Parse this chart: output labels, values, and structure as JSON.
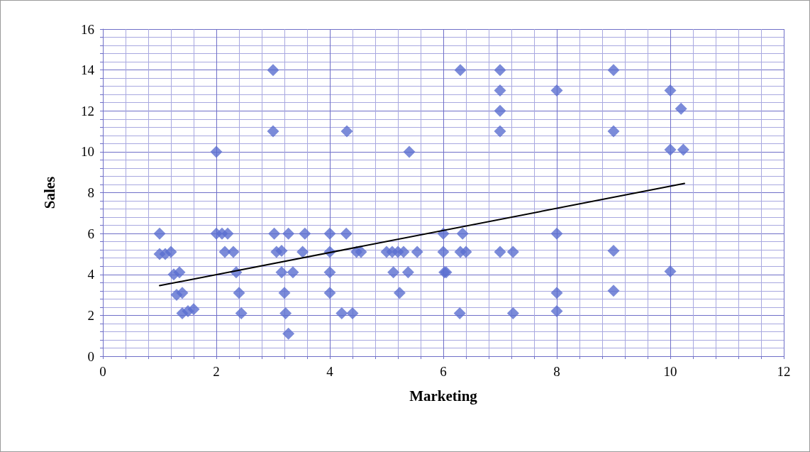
{
  "chart_data": {
    "type": "scatter",
    "xlabel": "Marketing",
    "ylabel": "Sales",
    "xlim": [
      0,
      12
    ],
    "xticks": [
      0,
      {
        "value": 0.4,
        "label": null
      },
      {
        "value": 0.8,
        "label": null
      },
      {
        "value": 1.2,
        "label": null
      },
      {
        "value": 1.6,
        "label": null
      },
      2,
      {
        "value": 2.4,
        "label": null
      },
      {
        "value": 2.8,
        "label": null
      },
      {
        "value": 3.2,
        "label": null
      },
      {
        "value": 3.6,
        "label": null
      },
      4,
      {
        "value": 4.4,
        "label": null
      },
      {
        "value": 4.8,
        "label": null
      },
      {
        "value": 5.2,
        "label": null
      },
      {
        "value": 5.6,
        "label": null
      },
      6,
      {
        "value": 6.4,
        "label": null
      },
      {
        "value": 6.8,
        "label": null
      },
      {
        "value": 7.2,
        "label": null
      },
      {
        "value": 7.6,
        "label": null
      },
      8,
      {
        "value": 8.4,
        "label": null
      },
      {
        "value": 8.8,
        "label": null
      },
      {
        "value": 9.2,
        "label": null
      },
      {
        "value": 9.6,
        "label": null
      },
      10,
      {
        "value": 10.4,
        "label": null
      },
      {
        "value": 10.8,
        "label": null
      },
      {
        "value": 11.2,
        "label": null
      },
      {
        "value": 11.6,
        "label": null
      },
      12
    ],
    "ylim": [
      0,
      16
    ],
    "yticks": [
      0,
      {
        "value": 0.4,
        "label": null
      },
      {
        "value": 0.8,
        "label": null
      },
      {
        "value": 1.2,
        "label": null
      },
      {
        "value": 1.6,
        "label": null
      },
      2,
      {
        "value": 2.4,
        "label": null
      },
      {
        "value": 2.8,
        "label": null
      },
      {
        "value": 3.2,
        "label": null
      },
      {
        "value": 3.6,
        "label": null
      },
      4,
      {
        "value": 4.4,
        "label": null
      },
      {
        "value": 4.8,
        "label": null
      },
      {
        "value": 5.2,
        "label": null
      },
      {
        "value": 5.6,
        "label": null
      },
      6,
      {
        "value": 6.4,
        "label": null
      },
      {
        "value": 6.8,
        "label": null
      },
      {
        "value": 7.2,
        "label": null
      },
      {
        "value": 7.6,
        "label": null
      },
      8,
      {
        "value": 8.4,
        "label": null
      },
      {
        "value": 8.8,
        "label": null
      },
      {
        "value": 9.2,
        "label": null
      },
      {
        "value": 9.6,
        "label": null
      },
      10,
      {
        "value": 10.4,
        "label": null
      },
      {
        "value": 10.8,
        "label": null
      },
      {
        "value": 11.2,
        "label": null
      },
      {
        "value": 11.6,
        "label": null
      },
      12,
      {
        "value": 12.4,
        "label": null
      },
      {
        "value": 12.8,
        "label": null
      },
      {
        "value": 13.2,
        "label": null
      },
      {
        "value": 13.6,
        "label": null
      },
      14,
      {
        "value": 14.4,
        "label": null
      },
      {
        "value": 14.8,
        "label": null
      },
      {
        "value": 15.2,
        "label": null
      },
      {
        "value": 15.6,
        "label": null
      },
      16
    ],
    "grid": true,
    "marker": "diamond",
    "series": [
      {
        "color": "#5a6ecf",
        "x": [
          1.0,
          1.0,
          1.1,
          1.2,
          1.25,
          1.35,
          1.3,
          1.4,
          1.4,
          1.5,
          1.6,
          2.0,
          2.0,
          2.1,
          2.2,
          2.15,
          2.3,
          2.35,
          2.4,
          2.44,
          3.0,
          3.0,
          3.02,
          3.27,
          3.56,
          3.06,
          3.15,
          3.52,
          3.15,
          3.35,
          3.2,
          3.22,
          3.27,
          4.0,
          4.0,
          4.0,
          4.0,
          4.29,
          4.3,
          4.47,
          4.55,
          4.21,
          4.4,
          5.0,
          5.1,
          5.2,
          5.3,
          5.54,
          5.4,
          5.12,
          5.38,
          5.23,
          6.0,
          6.0,
          6.34,
          6.3,
          6.4,
          6.02,
          6.05,
          6.3,
          6.29,
          7.0,
          7.0,
          7.0,
          7.0,
          7.0,
          7.23,
          7.23,
          8.0,
          8.0,
          8.0,
          8.0,
          9.0,
          9.0,
          9.0,
          9.0,
          10.0,
          10.0,
          10.0,
          10.19,
          10.23
        ],
        "values": [
          6,
          5,
          5,
          5.1,
          4,
          4.1,
          3,
          3.1,
          2.1,
          2.2,
          2.3,
          10,
          6,
          6,
          6,
          5.1,
          5.1,
          4.1,
          3.1,
          2.1,
          14,
          11,
          6,
          6,
          6,
          5.1,
          5.15,
          5.1,
          4.1,
          4.1,
          3.1,
          2.1,
          1.1,
          6,
          5.1,
          4.1,
          3.1,
          6,
          11,
          5.1,
          5.1,
          2.1,
          2.1,
          5.1,
          5.1,
          5.1,
          5.1,
          5.1,
          10,
          4.1,
          4.1,
          3.1,
          6,
          5.1,
          6,
          14,
          5.1,
          4.1,
          4.1,
          5.1,
          2.1,
          14,
          13,
          12,
          11,
          5.1,
          5.1,
          2.1,
          13,
          6,
          3.1,
          2.2,
          14,
          11,
          5.15,
          3.2,
          13,
          10.1,
          4.15,
          12.1,
          10.1
        ]
      },
      {
        "type": "line",
        "color": "#000000",
        "marker": "none",
        "line_style": "solid",
        "x": [
          1.0,
          10.25
        ],
        "values": [
          3.45,
          8.45
        ]
      }
    ]
  }
}
